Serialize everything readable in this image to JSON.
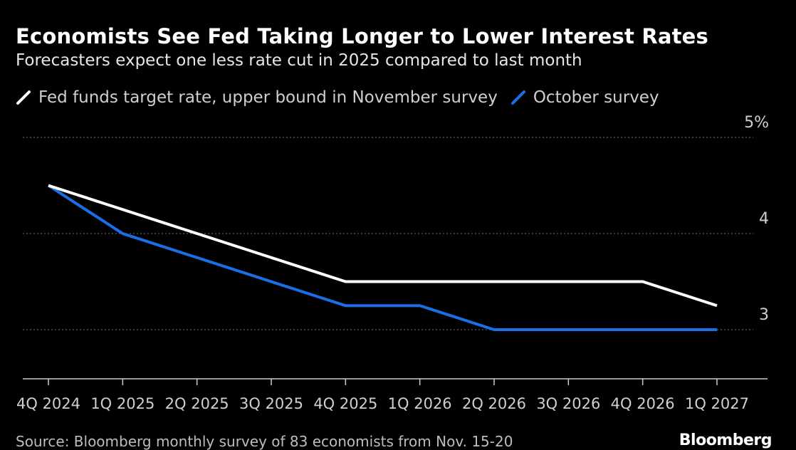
{
  "title": "Economists See Fed Taking Longer to Lower Interest Rates",
  "subtitle": "Forecasters expect one less rate cut in 2025 compared to last month",
  "source": "Source: Bloomberg monthly survey of 83 economists from Nov. 15-20",
  "brand": "Bloomberg",
  "colors": {
    "background": "#000000",
    "november": "#ffffff",
    "october": "#1a6fe8",
    "grid": "#777777",
    "axis": "#cccccc",
    "text": "#cfcfcf"
  },
  "chart_data": {
    "type": "line",
    "categories": [
      "4Q 2024",
      "1Q 2025",
      "2Q 2025",
      "3Q 2025",
      "4Q 2025",
      "1Q 2026",
      "2Q 2026",
      "3Q 2026",
      "4Q 2026",
      "1Q 2027"
    ],
    "series": [
      {
        "name": "Fed funds target rate, upper bound in November survey",
        "color": "#ffffff",
        "values": [
          4.5,
          4.25,
          4.0,
          3.75,
          3.5,
          3.5,
          3.5,
          3.5,
          3.5,
          3.25
        ]
      },
      {
        "name": "October survey",
        "color": "#1a6fe8",
        "values": [
          4.5,
          4.0,
          3.75,
          3.5,
          3.25,
          3.25,
          3.0,
          3.0,
          3.0,
          3.0
        ]
      }
    ],
    "yticks": [
      3,
      4,
      5
    ],
    "ytick_labels": [
      "3",
      "4",
      "5%"
    ],
    "ylim": [
      2.5,
      5.0
    ],
    "grid": true,
    "legend": "top-left"
  }
}
